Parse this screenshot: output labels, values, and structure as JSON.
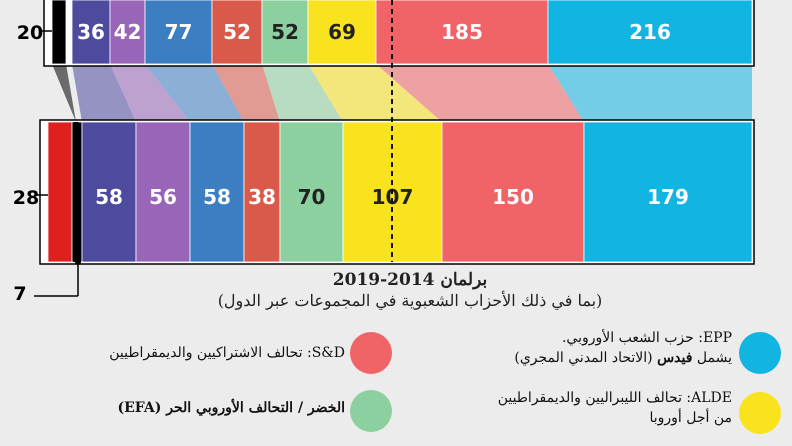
{
  "colors": {
    "background": "#ececec",
    "EPP": "#12b4e2",
    "SD": "#f06468",
    "ALDE": "#f9e21e",
    "Greens": "#8dd0a0",
    "ECR": "#d95a4a",
    "GUE": "#3c7ec2",
    "EFD": "#9865b8",
    "ENF": "#4e4b9e",
    "NI": "#000000",
    "Red": "#e0201e"
  },
  "chart_data": [
    {
      "type": "bar",
      "stacked": true,
      "orientation": "horizontal",
      "segments": [
        {
          "group": "NI",
          "value": 20,
          "color": "#000000"
        },
        {
          "group": "ENF",
          "value": 36,
          "color": "#4e4b9e"
        },
        {
          "group": "EFD",
          "value": 42,
          "color": "#9865b8"
        },
        {
          "group": "GUE",
          "value": 77,
          "color": "#3c7ec2"
        },
        {
          "group": "ECR",
          "value": 52,
          "color": "#d95a4a"
        },
        {
          "group": "Greens/EFA",
          "value": 52,
          "color": "#8dd0a0"
        },
        {
          "group": "ALDE",
          "value": 69,
          "color": "#f9e21e"
        },
        {
          "group": "S&D",
          "value": 185,
          "color": "#f06468"
        },
        {
          "group": "EPP",
          "value": 216,
          "color": "#12b4e2"
        }
      ]
    },
    {
      "type": "bar",
      "stacked": true,
      "orientation": "horizontal",
      "title": "برلمان 2014-2019",
      "segments": [
        {
          "group": "red",
          "value": 28,
          "color": "#e0201e"
        },
        {
          "group": "NI",
          "value": 7,
          "color": "#000000"
        },
        {
          "group": "ENF",
          "value": 58,
          "color": "#4e4b9e"
        },
        {
          "group": "EFD",
          "value": 56,
          "color": "#9865b8"
        },
        {
          "group": "GUE",
          "value": 58,
          "color": "#3c7ec2"
        },
        {
          "group": "ECR",
          "value": 38,
          "color": "#d95a4a"
        },
        {
          "group": "Greens/EFA",
          "value": 70,
          "color": "#8dd0a0"
        },
        {
          "group": "ALDE",
          "value": 107,
          "color": "#f9e21e"
        },
        {
          "group": "S&D",
          "value": 150,
          "color": "#f06468"
        },
        {
          "group": "EPP",
          "value": 179,
          "color": "#12b4e2"
        }
      ]
    }
  ],
  "text": {
    "parl_title": "برلمان 2014-2019",
    "parl_note": "(بما في ذلك الأحزاب الشعبوية في المجموعات عبر الدول)"
  },
  "legend": [
    {
      "key": "EPP",
      "label": "EPP: حزب الشعب الأوروبي.",
      "extra_prefix": "يشمل ",
      "extra_bold": "فيدس",
      "extra_suffix": " (الاتحاد المدني المجري)",
      "color": "#12b4e2"
    },
    {
      "key": "SD",
      "label": "S&D: تحالف الاشتراكيين والديمقراطيين",
      "color": "#f06468"
    },
    {
      "key": "ALDE",
      "label": "ALDE: تحالف الليبراليين والديمقراطيين",
      "line2": "من أجل أوروبا",
      "color": "#f9e21e"
    },
    {
      "key": "Greens",
      "label": "الخضر / التحالف الأوروبي الحر (EFA)",
      "color": "#8dd0a0"
    }
  ]
}
